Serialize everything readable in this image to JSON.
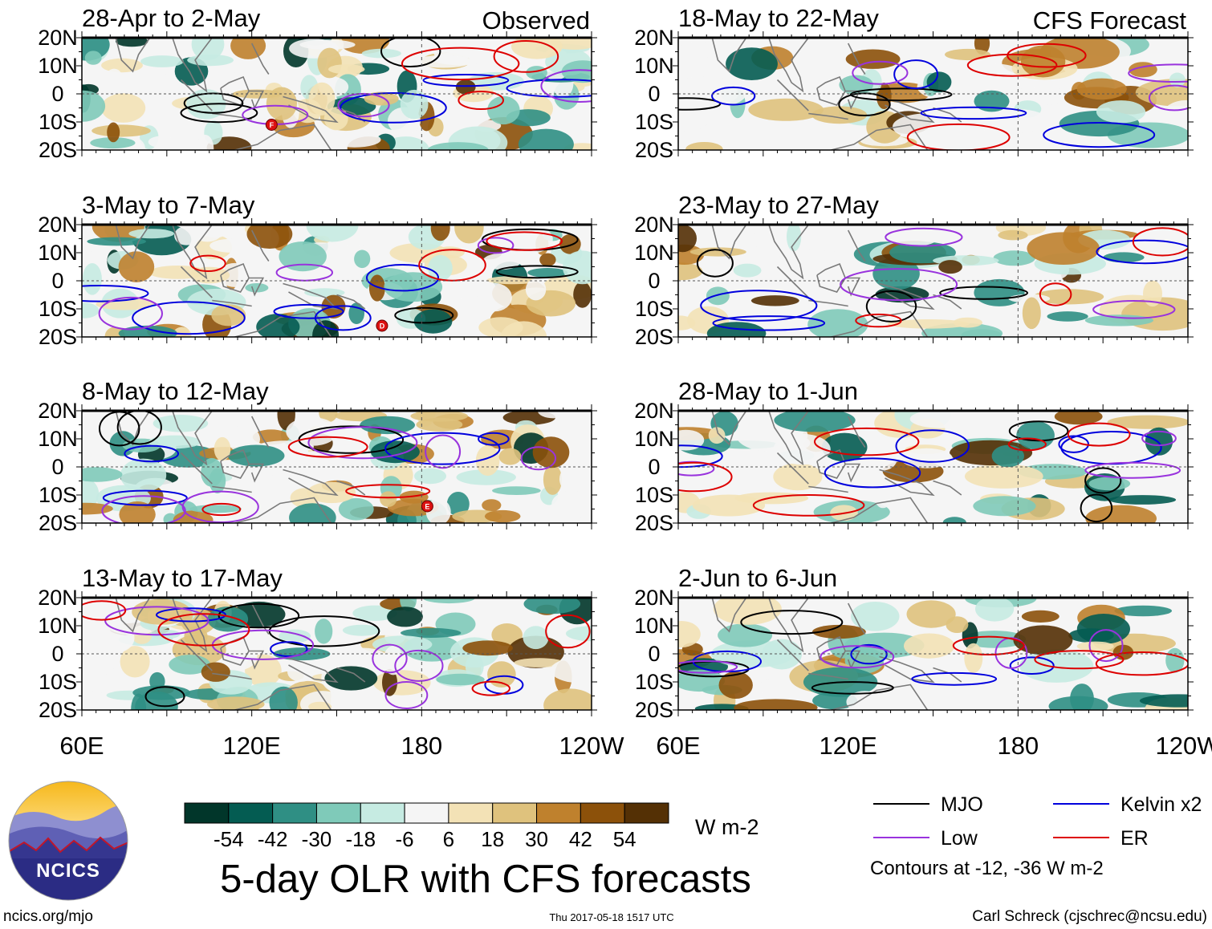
{
  "chart_data": {
    "type": "heatmap",
    "title": "5-day OLR with CFS forecasts",
    "units": "W m-2",
    "x_ticks": [
      "60E",
      "120E",
      "180",
      "120W"
    ],
    "x_values": [
      60,
      120,
      180,
      240
    ],
    "xlim": [
      60,
      240
    ],
    "y_ticks": [
      "20N",
      "10N",
      "0",
      "10S",
      "20S"
    ],
    "y_values": [
      20,
      10,
      0,
      -10,
      -20
    ],
    "ylim": [
      -20,
      20
    ],
    "colorbar": {
      "tick_labels": [
        "-54",
        "-42",
        "-30",
        "-18",
        "-6",
        "6",
        "18",
        "30",
        "42",
        "54"
      ],
      "colors": [
        "#01362a",
        "#045c52",
        "#2f8f84",
        "#7fcab9",
        "#c6ebe2",
        "#f5f5f5",
        "#f3e2b6",
        "#dfc27d",
        "#bf812d",
        "#8c510a",
        "#543005"
      ]
    },
    "legend": [
      {
        "label": "MJO",
        "color": "#000000"
      },
      {
        "label": "Kelvin x2",
        "color": "#0000dd"
      },
      {
        "label": "Low",
        "color": "#9933dd"
      },
      {
        "label": "ER",
        "color": "#dd0000"
      }
    ],
    "contour_note": "Contours at -12, -36 W m-2",
    "columns": [
      {
        "header": "Observed",
        "panels": [
          {
            "title": "28-Apr to 2-May",
            "markers": [
              {
                "label": "F",
                "lon": 127,
                "lat": -11
              }
            ]
          },
          {
            "title": "3-May to 7-May",
            "markers": [
              {
                "label": "D",
                "lon": 166,
                "lat": -16
              }
            ]
          },
          {
            "title": "8-May to 12-May",
            "markers": [
              {
                "label": "E",
                "lon": 182,
                "lat": -14
              }
            ]
          },
          {
            "title": "13-May to 17-May",
            "markers": []
          }
        ]
      },
      {
        "header": "CFS Forecast",
        "panels": [
          {
            "title": "18-May to 22-May",
            "markers": []
          },
          {
            "title": "23-May to 27-May",
            "markers": []
          },
          {
            "title": "28-May to 1-Jun",
            "markers": []
          },
          {
            "title": "2-Jun to 6-Jun",
            "markers": []
          }
        ]
      }
    ]
  },
  "logo": {
    "text": "NCICS"
  },
  "footer": {
    "site": "ncics.org/mjo",
    "timestamp": "Thu 2017-05-18 1517 UTC",
    "credit": "Carl Schreck (cjschrec@ncsu.edu)"
  }
}
